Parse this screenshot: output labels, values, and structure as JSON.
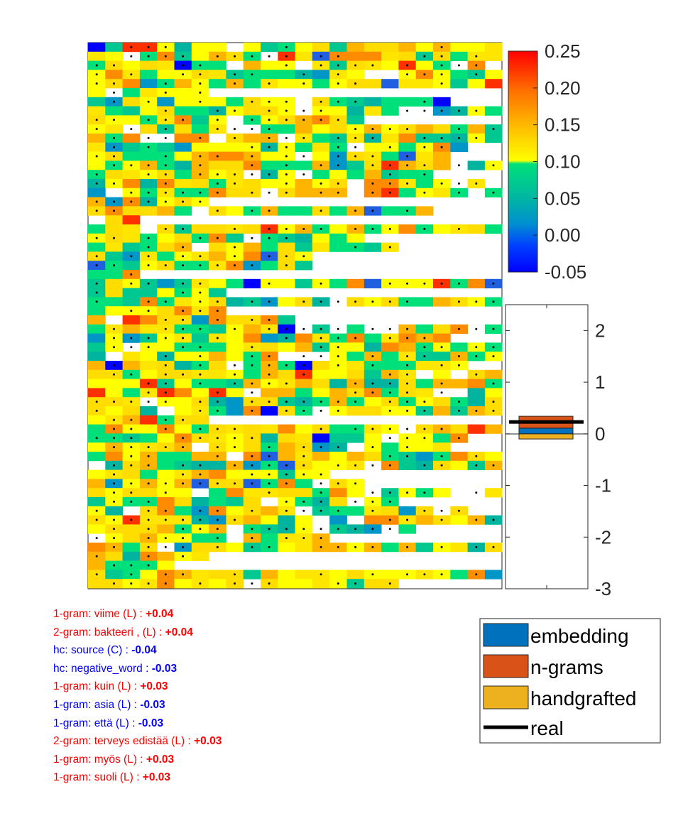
{
  "colors": {
    "positive": "#ff0000",
    "negative": "#0000ff",
    "embedding": "#0072bd",
    "ngrams": "#d95319",
    "handgrafted": "#edb120",
    "real": "#000000"
  },
  "chart_data": [
    {
      "type": "heatmap",
      "title": "",
      "rows": 60,
      "cols": 24,
      "note_cells": "word-level contribution heatmap; blank cells are white, dotted cells carry a marker",
      "colorbar": {
        "colormap": "jet-like",
        "range": [
          -0.05,
          0.25
        ],
        "ticks": [
          "0.25",
          "0.20",
          "0.15",
          "0.10",
          "0.05",
          "0.00",
          "-0.05"
        ]
      }
    },
    {
      "type": "bar",
      "title": "",
      "xlabel": "",
      "ylabel": "",
      "ylim": [
        -3,
        2.5
      ],
      "yticks": [
        "2",
        "1",
        "0",
        "-1",
        "-2",
        "-3"
      ],
      "stack": [
        {
          "name": "handgrafted",
          "from": -0.1,
          "to": 0.0
        },
        {
          "name": "embedding",
          "from": 0.0,
          "to": 0.11
        },
        {
          "name": "n-grams",
          "from": 0.11,
          "to": 0.34
        }
      ],
      "real": 0.23,
      "legend": {
        "position": "bottom-right",
        "entries": [
          "embedding",
          "n-grams",
          "handgrafted",
          "real"
        ]
      }
    }
  ],
  "features": [
    {
      "label": "1-gram: viime (L) : ",
      "value": "+0.04",
      "sign": "positive"
    },
    {
      "label": "2-gram: bakteeri , (L) : ",
      "value": "+0.04",
      "sign": "positive"
    },
    {
      "label": "hc: source (C) : ",
      "value": "-0.04",
      "sign": "negative"
    },
    {
      "label": "hc: negative_word : ",
      "value": "-0.03",
      "sign": "negative"
    },
    {
      "label": "1-gram: kuin (L) : ",
      "value": "+0.03",
      "sign": "positive"
    },
    {
      "label": "1-gram: asia (L) : ",
      "value": "-0.03",
      "sign": "negative"
    },
    {
      "label": "1-gram: että (L) : ",
      "value": "-0.03",
      "sign": "negative"
    },
    {
      "label": "2-gram: terveys edistää (L) : ",
      "value": "+0.03",
      "sign": "positive"
    },
    {
      "label": "1-gram: myös (L) : ",
      "value": "+0.03",
      "sign": "positive"
    },
    {
      "label": "1-gram: suoli (L) : ",
      "value": "+0.03",
      "sign": "positive"
    }
  ]
}
